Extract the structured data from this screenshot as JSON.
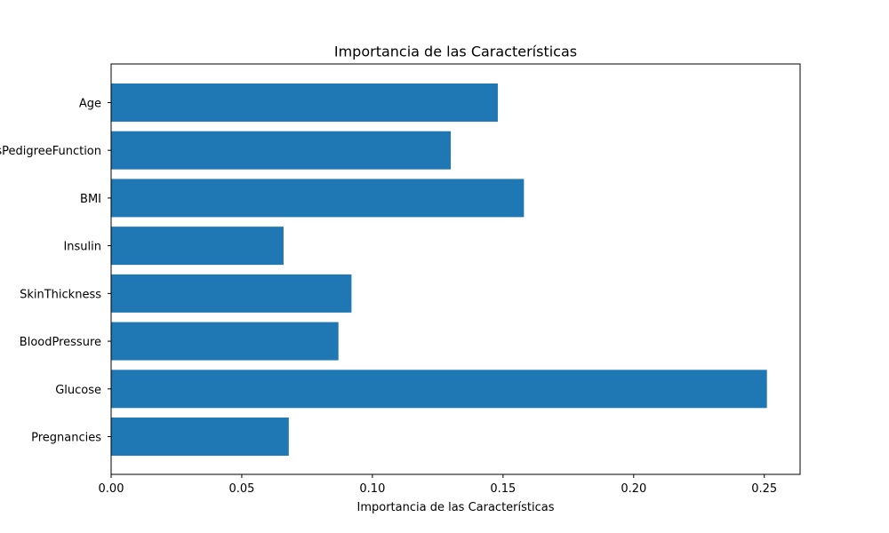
{
  "chart_data": {
    "type": "bar",
    "orientation": "horizontal",
    "title": "Importancia de las Características",
    "xlabel": "Importancia de las Características",
    "ylabel": "",
    "categories": [
      "Pregnancies",
      "Glucose",
      "BloodPressure",
      "SkinThickness",
      "Insulin",
      "BMI",
      "DiabetesPedigreeFunction",
      "Age"
    ],
    "values": [
      0.068,
      0.251,
      0.087,
      0.092,
      0.066,
      0.158,
      0.13,
      0.148
    ],
    "xlim": [
      0,
      0.2637
    ],
    "xticks": [
      "0.00",
      "0.05",
      "0.10",
      "0.15",
      "0.20",
      "0.25"
    ],
    "bar_color": "#1f77b4",
    "grid": false,
    "legend": "none"
  }
}
